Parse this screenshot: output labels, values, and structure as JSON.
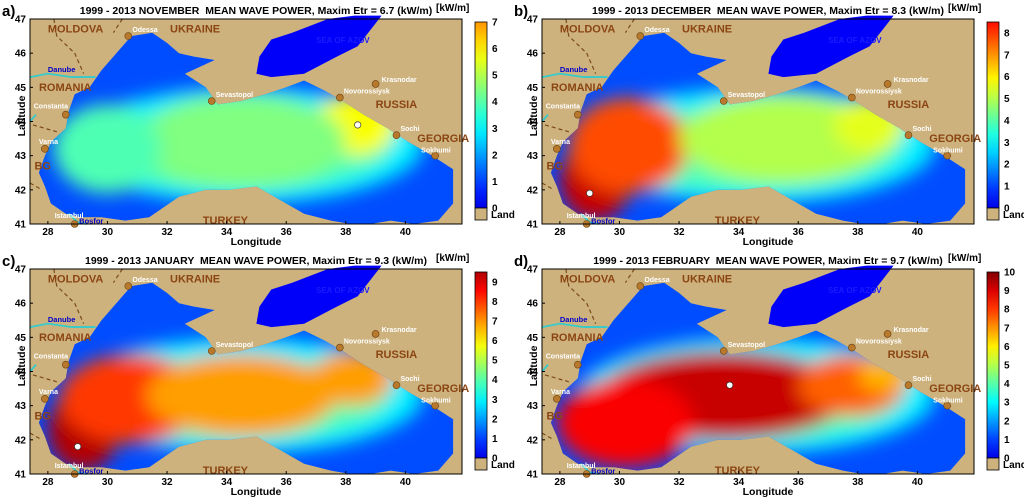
{
  "map": {
    "x_label": "Longitude",
    "y_label": "Latitude",
    "x_ticks": [
      "28",
      "30",
      "32",
      "34",
      "36",
      "38",
      "40"
    ],
    "y_ticks": [
      "47",
      "46",
      "45",
      "44",
      "43",
      "42",
      "41"
    ],
    "land_label": "Land",
    "unit": "[kW/m]",
    "countries": [
      "MOLDOVA",
      "UKRAINE",
      "ROMANIA",
      "RUSSIA",
      "GEORGIA",
      "BG",
      "TURKEY"
    ],
    "cities": [
      "Odessa",
      "Krasnodar",
      "Constanta",
      "Sevastopol",
      "Novorossiysk",
      "Varna",
      "Sochi",
      "Sokhumi",
      "Istambul"
    ],
    "sea_name": "SEA OF AZOV",
    "river": "Danube",
    "strait": "Bosfor",
    "land_color": "#CDB27E",
    "colorscale": "jet"
  },
  "panels": [
    {
      "label": "a)",
      "title": "1999 - 2013 NOVEMBER  MEAN WAVE POWER, Maxim Etr = 6.7 (kW/m)",
      "cb_ticks": [
        "7",
        "6",
        "5",
        "4",
        "3",
        "2",
        "1",
        "0"
      ],
      "cb_max": 7,
      "max_value": 6.7,
      "max_lon": 38.4,
      "max_lat": 43.9
    },
    {
      "label": "b)",
      "title": "1999 - 2013 DECEMBER  MEAN WAVE POWER, Maxim Etr = 8.3 (kW/m)",
      "cb_ticks": [
        "8",
        "7",
        "6",
        "5",
        "4",
        "3",
        "2",
        "1",
        "0"
      ],
      "cb_max": 8.5,
      "max_value": 8.3,
      "max_lon": 29.0,
      "max_lat": 41.9
    },
    {
      "label": "c)",
      "title": "1999 - 2013 JANUARY  MEAN WAVE POWER, Maxim Etr = 9.3 (kW/m)",
      "cb_ticks": [
        "9",
        "8",
        "7",
        "6",
        "5",
        "4",
        "3",
        "2",
        "1",
        "0"
      ],
      "cb_max": 9.5,
      "max_value": 9.3,
      "max_lon": 29.0,
      "max_lat": 41.8
    },
    {
      "label": "d)",
      "title": "1999 - 2013 FEBRUARY  MEAN WAVE POWER, Maxim Etr = 9.7 (kW/m)",
      "cb_ticks": [
        "10",
        "9",
        "8",
        "7",
        "6",
        "5",
        "4",
        "3",
        "2",
        "1",
        "0"
      ],
      "cb_max": 10,
      "max_value": 9.7,
      "max_lon": 33.7,
      "max_lat": 43.6
    }
  ]
}
